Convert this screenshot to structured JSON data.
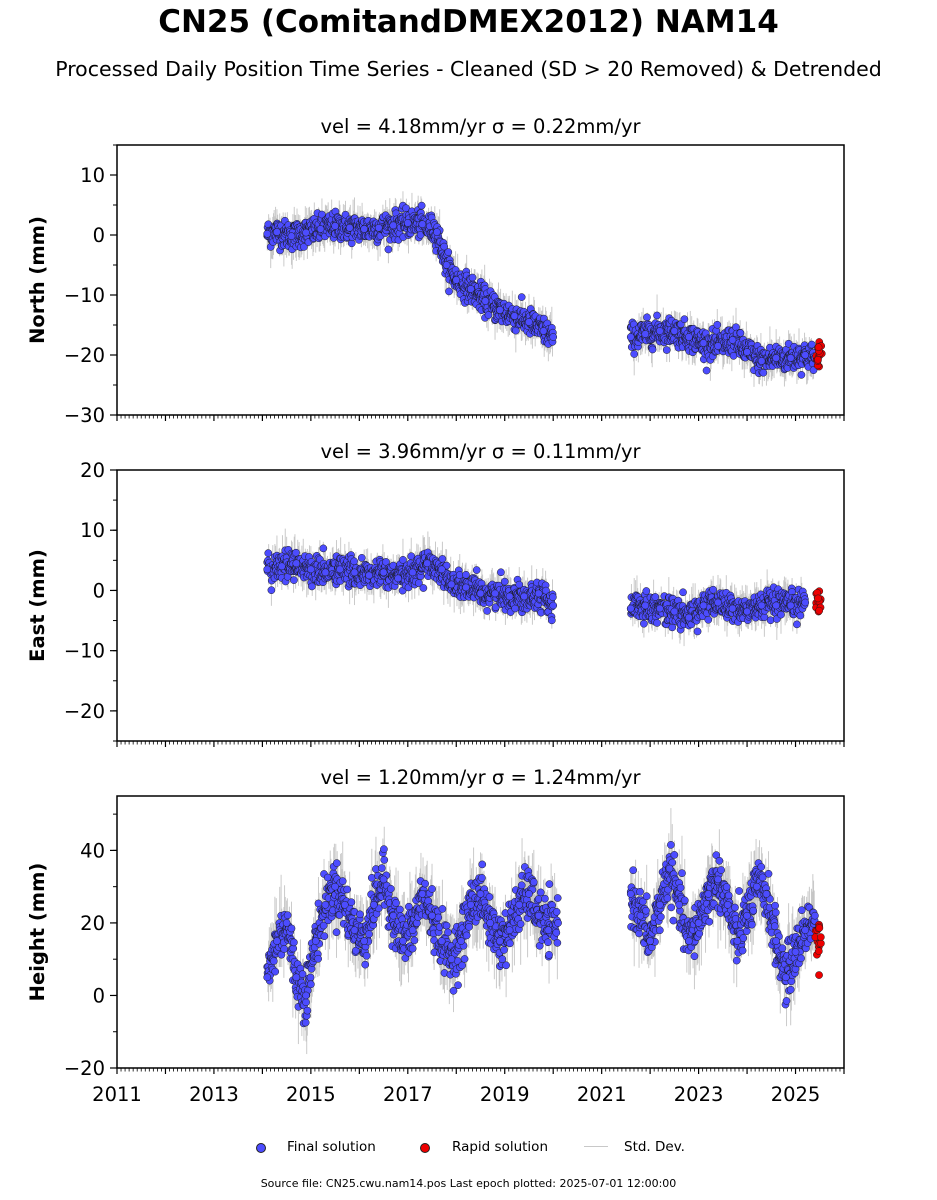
{
  "title": "CN25 (ComitandDMEX2012) NAM14",
  "subtitle": "Processed Daily Position Time Series - Cleaned (SD > 20 Removed) & Detrended",
  "footnote": "Source file: CN25.cwu.nam14.pos  Last epoch plotted: 2025-07-01 12:00:00",
  "legend": {
    "final": "Final solution",
    "rapid": "Rapid solution",
    "std": "Std. Dev."
  },
  "colors": {
    "final": "#4c4cff",
    "rapid": "#ee0000",
    "std": "#bdbdbd",
    "edge": "#1a1a1a"
  },
  "chart_data": [
    {
      "type": "scatter",
      "title": "vel = 4.18mm/yr   σ = 0.22mm/yr",
      "ylabel": "North (mm)",
      "xlim": [
        2011,
        2026
      ],
      "ylim": [
        -30,
        15
      ],
      "yticks": [
        10,
        0,
        -10,
        -20,
        -30
      ],
      "xticks": [
        "2011",
        "2013",
        "2015",
        "2017",
        "2019",
        "2021",
        "2023",
        "2025"
      ],
      "final": [
        [
          2014.1,
          0.2
        ],
        [
          2014.3,
          0.5
        ],
        [
          2014.6,
          -0.2
        ],
        [
          2014.9,
          0.4
        ],
        [
          2015.2,
          1.0
        ],
        [
          2015.5,
          1.5
        ],
        [
          2015.8,
          1.2
        ],
        [
          2016.1,
          1.0
        ],
        [
          2016.4,
          1.2
        ],
        [
          2016.7,
          1.6
        ],
        [
          2017.0,
          2.0
        ],
        [
          2017.3,
          1.8
        ],
        [
          2017.6,
          0.5
        ],
        [
          2017.8,
          -5.0
        ],
        [
          2018.0,
          -7.5
        ],
        [
          2018.3,
          -9.0
        ],
        [
          2018.6,
          -11.0
        ],
        [
          2018.9,
          -12.5
        ],
        [
          2019.2,
          -13.5
        ],
        [
          2019.5,
          -14.5
        ],
        [
          2019.8,
          -16.0
        ],
        [
          2020.0,
          -17.0
        ],
        [
          2021.6,
          -17.0
        ],
        [
          2021.9,
          -16.5
        ],
        [
          2022.2,
          -16.0
        ],
        [
          2022.5,
          -16.0
        ],
        [
          2022.8,
          -17.0
        ],
        [
          2023.1,
          -18.0
        ],
        [
          2023.4,
          -18.5
        ],
        [
          2023.7,
          -17.5
        ],
        [
          2024.0,
          -19.5
        ],
        [
          2024.3,
          -21.0
        ],
        [
          2024.6,
          -20.5
        ],
        [
          2024.9,
          -20.5
        ],
        [
          2025.2,
          -20.0
        ],
        [
          2025.4,
          -20.5
        ]
      ],
      "rapid": [
        [
          2025.45,
          -20.0
        ],
        [
          2025.5,
          -19.5
        ]
      ]
    },
    {
      "type": "scatter",
      "title": "vel = 3.96mm/yr   σ = 0.11mm/yr",
      "ylabel": "East (mm)",
      "xlim": [
        2011,
        2026
      ],
      "ylim": [
        -25,
        20
      ],
      "yticks": [
        20,
        10,
        0,
        -10,
        -20
      ],
      "xticks": [
        "2011",
        "2013",
        "2015",
        "2017",
        "2019",
        "2021",
        "2023",
        "2025"
      ],
      "final": [
        [
          2014.1,
          3.5
        ],
        [
          2014.4,
          4.0
        ],
        [
          2014.7,
          4.5
        ],
        [
          2015.0,
          3.5
        ],
        [
          2015.3,
          3.0
        ],
        [
          2015.6,
          3.5
        ],
        [
          2015.9,
          3.0
        ],
        [
          2016.2,
          2.5
        ],
        [
          2016.5,
          3.0
        ],
        [
          2016.8,
          2.0
        ],
        [
          2017.1,
          3.0
        ],
        [
          2017.4,
          4.5
        ],
        [
          2017.7,
          3.5
        ],
        [
          2017.9,
          1.0
        ],
        [
          2018.2,
          0.5
        ],
        [
          2018.5,
          -0.5
        ],
        [
          2018.8,
          -0.5
        ],
        [
          2019.1,
          -1.0
        ],
        [
          2019.4,
          -1.0
        ],
        [
          2019.7,
          -0.5
        ],
        [
          2020.0,
          -2.5
        ],
        [
          2021.6,
          -3.0
        ],
        [
          2021.9,
          -2.5
        ],
        [
          2022.2,
          -3.0
        ],
        [
          2022.5,
          -3.5
        ],
        [
          2022.8,
          -4.5
        ],
        [
          2023.1,
          -2.5
        ],
        [
          2023.4,
          -2.0
        ],
        [
          2023.7,
          -3.0
        ],
        [
          2024.0,
          -3.5
        ],
        [
          2024.3,
          -2.5
        ],
        [
          2024.6,
          -2.5
        ],
        [
          2024.9,
          -2.5
        ],
        [
          2025.2,
          -2.0
        ]
      ],
      "rapid": [
        [
          2025.45,
          -1.5
        ],
        [
          2025.5,
          -2.0
        ]
      ]
    },
    {
      "type": "scatter",
      "title": "vel = 1.20mm/yr   σ = 1.24mm/yr",
      "ylabel": "Height (mm)",
      "xlim": [
        2011,
        2026
      ],
      "ylim": [
        -20,
        55
      ],
      "yticks": [
        40,
        20,
        0,
        -20
      ],
      "xticks": [
        "2011",
        "2013",
        "2015",
        "2017",
        "2019",
        "2021",
        "2023",
        "2025"
      ],
      "final": [
        [
          2014.1,
          5.0
        ],
        [
          2014.3,
          15.0
        ],
        [
          2014.5,
          20.0
        ],
        [
          2014.7,
          5.0
        ],
        [
          2014.9,
          0.0
        ],
        [
          2015.1,
          15.0
        ],
        [
          2015.3,
          25.0
        ],
        [
          2015.5,
          30.0
        ],
        [
          2015.7,
          25.0
        ],
        [
          2015.9,
          18.0
        ],
        [
          2016.1,
          15.0
        ],
        [
          2016.3,
          25.0
        ],
        [
          2016.5,
          32.0
        ],
        [
          2016.7,
          22.0
        ],
        [
          2016.9,
          15.0
        ],
        [
          2017.1,
          18.0
        ],
        [
          2017.3,
          28.0
        ],
        [
          2017.5,
          22.0
        ],
        [
          2017.7,
          15.0
        ],
        [
          2017.9,
          10.0
        ],
        [
          2018.1,
          15.0
        ],
        [
          2018.3,
          25.0
        ],
        [
          2018.5,
          28.0
        ],
        [
          2018.7,
          20.0
        ],
        [
          2018.9,
          15.0
        ],
        [
          2019.1,
          18.0
        ],
        [
          2019.3,
          25.0
        ],
        [
          2019.5,
          28.0
        ],
        [
          2019.7,
          22.0
        ],
        [
          2019.9,
          18.0
        ],
        [
          2020.1,
          20.0
        ],
        [
          2021.6,
          28.0
        ],
        [
          2021.8,
          22.0
        ],
        [
          2022.0,
          15.0
        ],
        [
          2022.2,
          25.0
        ],
        [
          2022.4,
          35.0
        ],
        [
          2022.6,
          25.0
        ],
        [
          2022.8,
          15.0
        ],
        [
          2023.0,
          20.0
        ],
        [
          2023.2,
          28.0
        ],
        [
          2023.4,
          32.0
        ],
        [
          2023.6,
          25.0
        ],
        [
          2023.8,
          15.0
        ],
        [
          2024.0,
          22.0
        ],
        [
          2024.2,
          30.0
        ],
        [
          2024.4,
          28.0
        ],
        [
          2024.6,
          15.0
        ],
        [
          2024.8,
          5.0
        ],
        [
          2025.0,
          12.0
        ],
        [
          2025.2,
          18.0
        ],
        [
          2025.4,
          22.0
        ]
      ],
      "rapid": [
        [
          2025.45,
          18.0
        ],
        [
          2025.5,
          15.0
        ]
      ]
    }
  ]
}
